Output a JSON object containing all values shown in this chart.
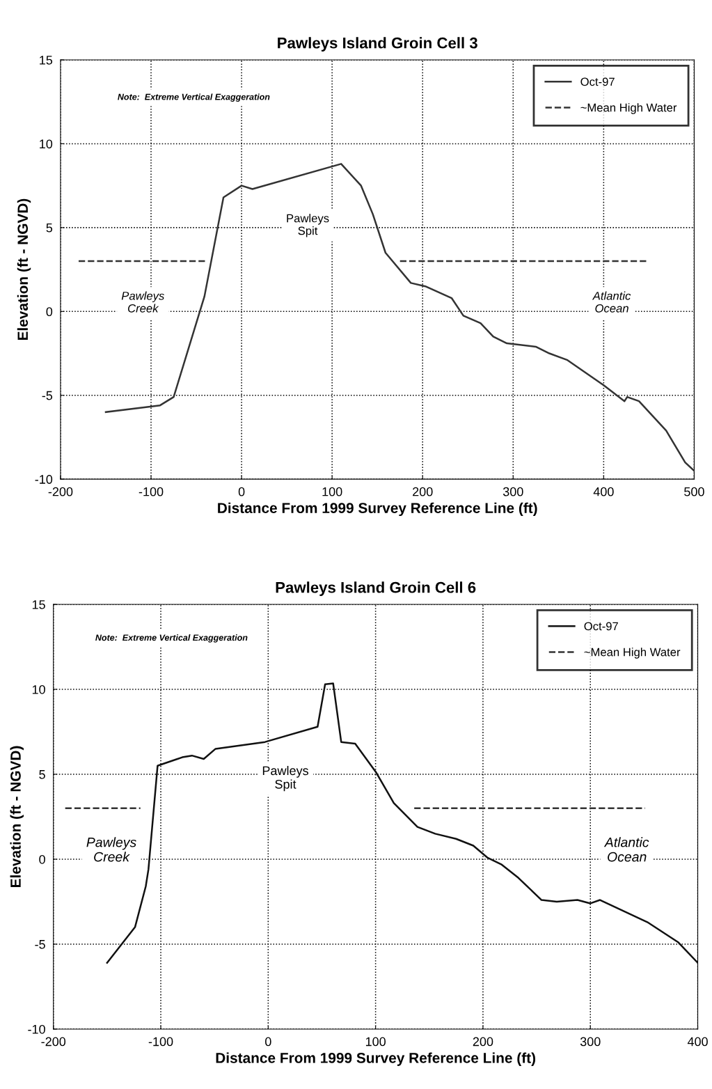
{
  "chart_data": [
    {
      "type": "line",
      "title": "Pawleys Island Groin Cell 3",
      "xlabel": "Distance From 1999 Survey Reference Line (ft)",
      "ylabel": "Elevation (ft - NGVD)",
      "xlim": [
        -200,
        500
      ],
      "xticks": [
        -200,
        -100,
        0,
        100,
        200,
        300,
        400,
        500
      ],
      "ylim": [
        -10,
        15
      ],
      "yticks": [
        -10,
        -5,
        0,
        5,
        10,
        15
      ],
      "grid": true,
      "legend": "top right",
      "marker": "none",
      "annotations": [
        "Note:  Extreme Vertical Exaggeration",
        "Pawleys\nCreek",
        "Pawleys\nSpit",
        "Atlantic\nOcean"
      ],
      "series": [
        {
          "name": "Oct-97",
          "color": "#333333",
          "line_style": "solid",
          "x": [
            -150,
            -90,
            -75,
            -41,
            -20,
            0,
            12,
            110,
            132,
            145,
            159,
            187,
            203,
            232,
            245,
            264,
            278,
            293,
            325,
            340,
            360,
            400,
            423,
            426,
            439,
            469,
            490,
            500
          ],
          "values": [
            -6,
            -5.6,
            -5.1,
            0.9,
            6.8,
            7.5,
            7.3,
            8.8,
            7.5,
            5.8,
            3.5,
            1.7,
            1.5,
            0.8,
            -0.25,
            -0.7,
            -1.5,
            -1.9,
            -2.1,
            -2.5,
            -2.9,
            -4.4,
            -5.35,
            -5.1,
            -5.35,
            -7.1,
            -9,
            -9.5
          ]
        },
        {
          "name": "~Mean High Water",
          "color": "#333333",
          "line_style": "dashed",
          "x": [
            -180,
            -40,
            60,
            175,
            450
          ],
          "values": [
            3,
            3,
            null,
            3,
            3
          ]
        }
      ]
    },
    {
      "type": "line",
      "title": "Pawleys Island Groin Cell 6",
      "xlabel": "Distance From 1999 Survey Reference Line (ft)",
      "ylabel": "Elevation (ft - NGVD)",
      "xlim": [
        -200,
        400
      ],
      "xticks": [
        -200,
        -100,
        0,
        100,
        200,
        300,
        400
      ],
      "ylim": [
        -10,
        15
      ],
      "yticks": [
        -10,
        -5,
        0,
        5,
        10,
        15
      ],
      "grid": true,
      "legend": "top right",
      "marker": "none",
      "annotations": [
        "Note:  Extreme Vertical Exaggeration",
        "Pawleys\nCreek",
        "Pawleys\nSpit",
        "Atlantic\nOcean"
      ],
      "series": [
        {
          "name": "Oct-97",
          "color": "#111111",
          "line_style": "solid",
          "x": [
            -150,
            -124,
            -114,
            -111.5,
            -103,
            -80,
            -71,
            -60,
            -49,
            -3,
            46,
            53,
            60.5,
            68,
            81,
            100.6,
            117,
            139,
            155.5,
            175,
            191,
            204,
            217,
            233,
            254.5,
            268.7,
            288,
            300,
            309,
            353,
            382,
            400
          ],
          "values": [
            -6.1,
            -4,
            -1.6,
            -0.6,
            5.5,
            6,
            6.1,
            5.9,
            6.5,
            6.9,
            7.8,
            10.3,
            10.35,
            6.9,
            6.8,
            5.1,
            3.3,
            1.9,
            1.5,
            1.2,
            0.8,
            0.1,
            -0.3,
            -1.1,
            -2.4,
            -2.5,
            -2.4,
            -2.6,
            -2.4,
            -3.7,
            -4.9,
            -6.1
          ]
        },
        {
          "name": "~Mean High Water",
          "color": "#333333",
          "line_style": "dashed",
          "x": [
            -189,
            -119,
            0,
            136,
            351
          ],
          "values": [
            3,
            3,
            null,
            3,
            3
          ]
        }
      ]
    }
  ]
}
